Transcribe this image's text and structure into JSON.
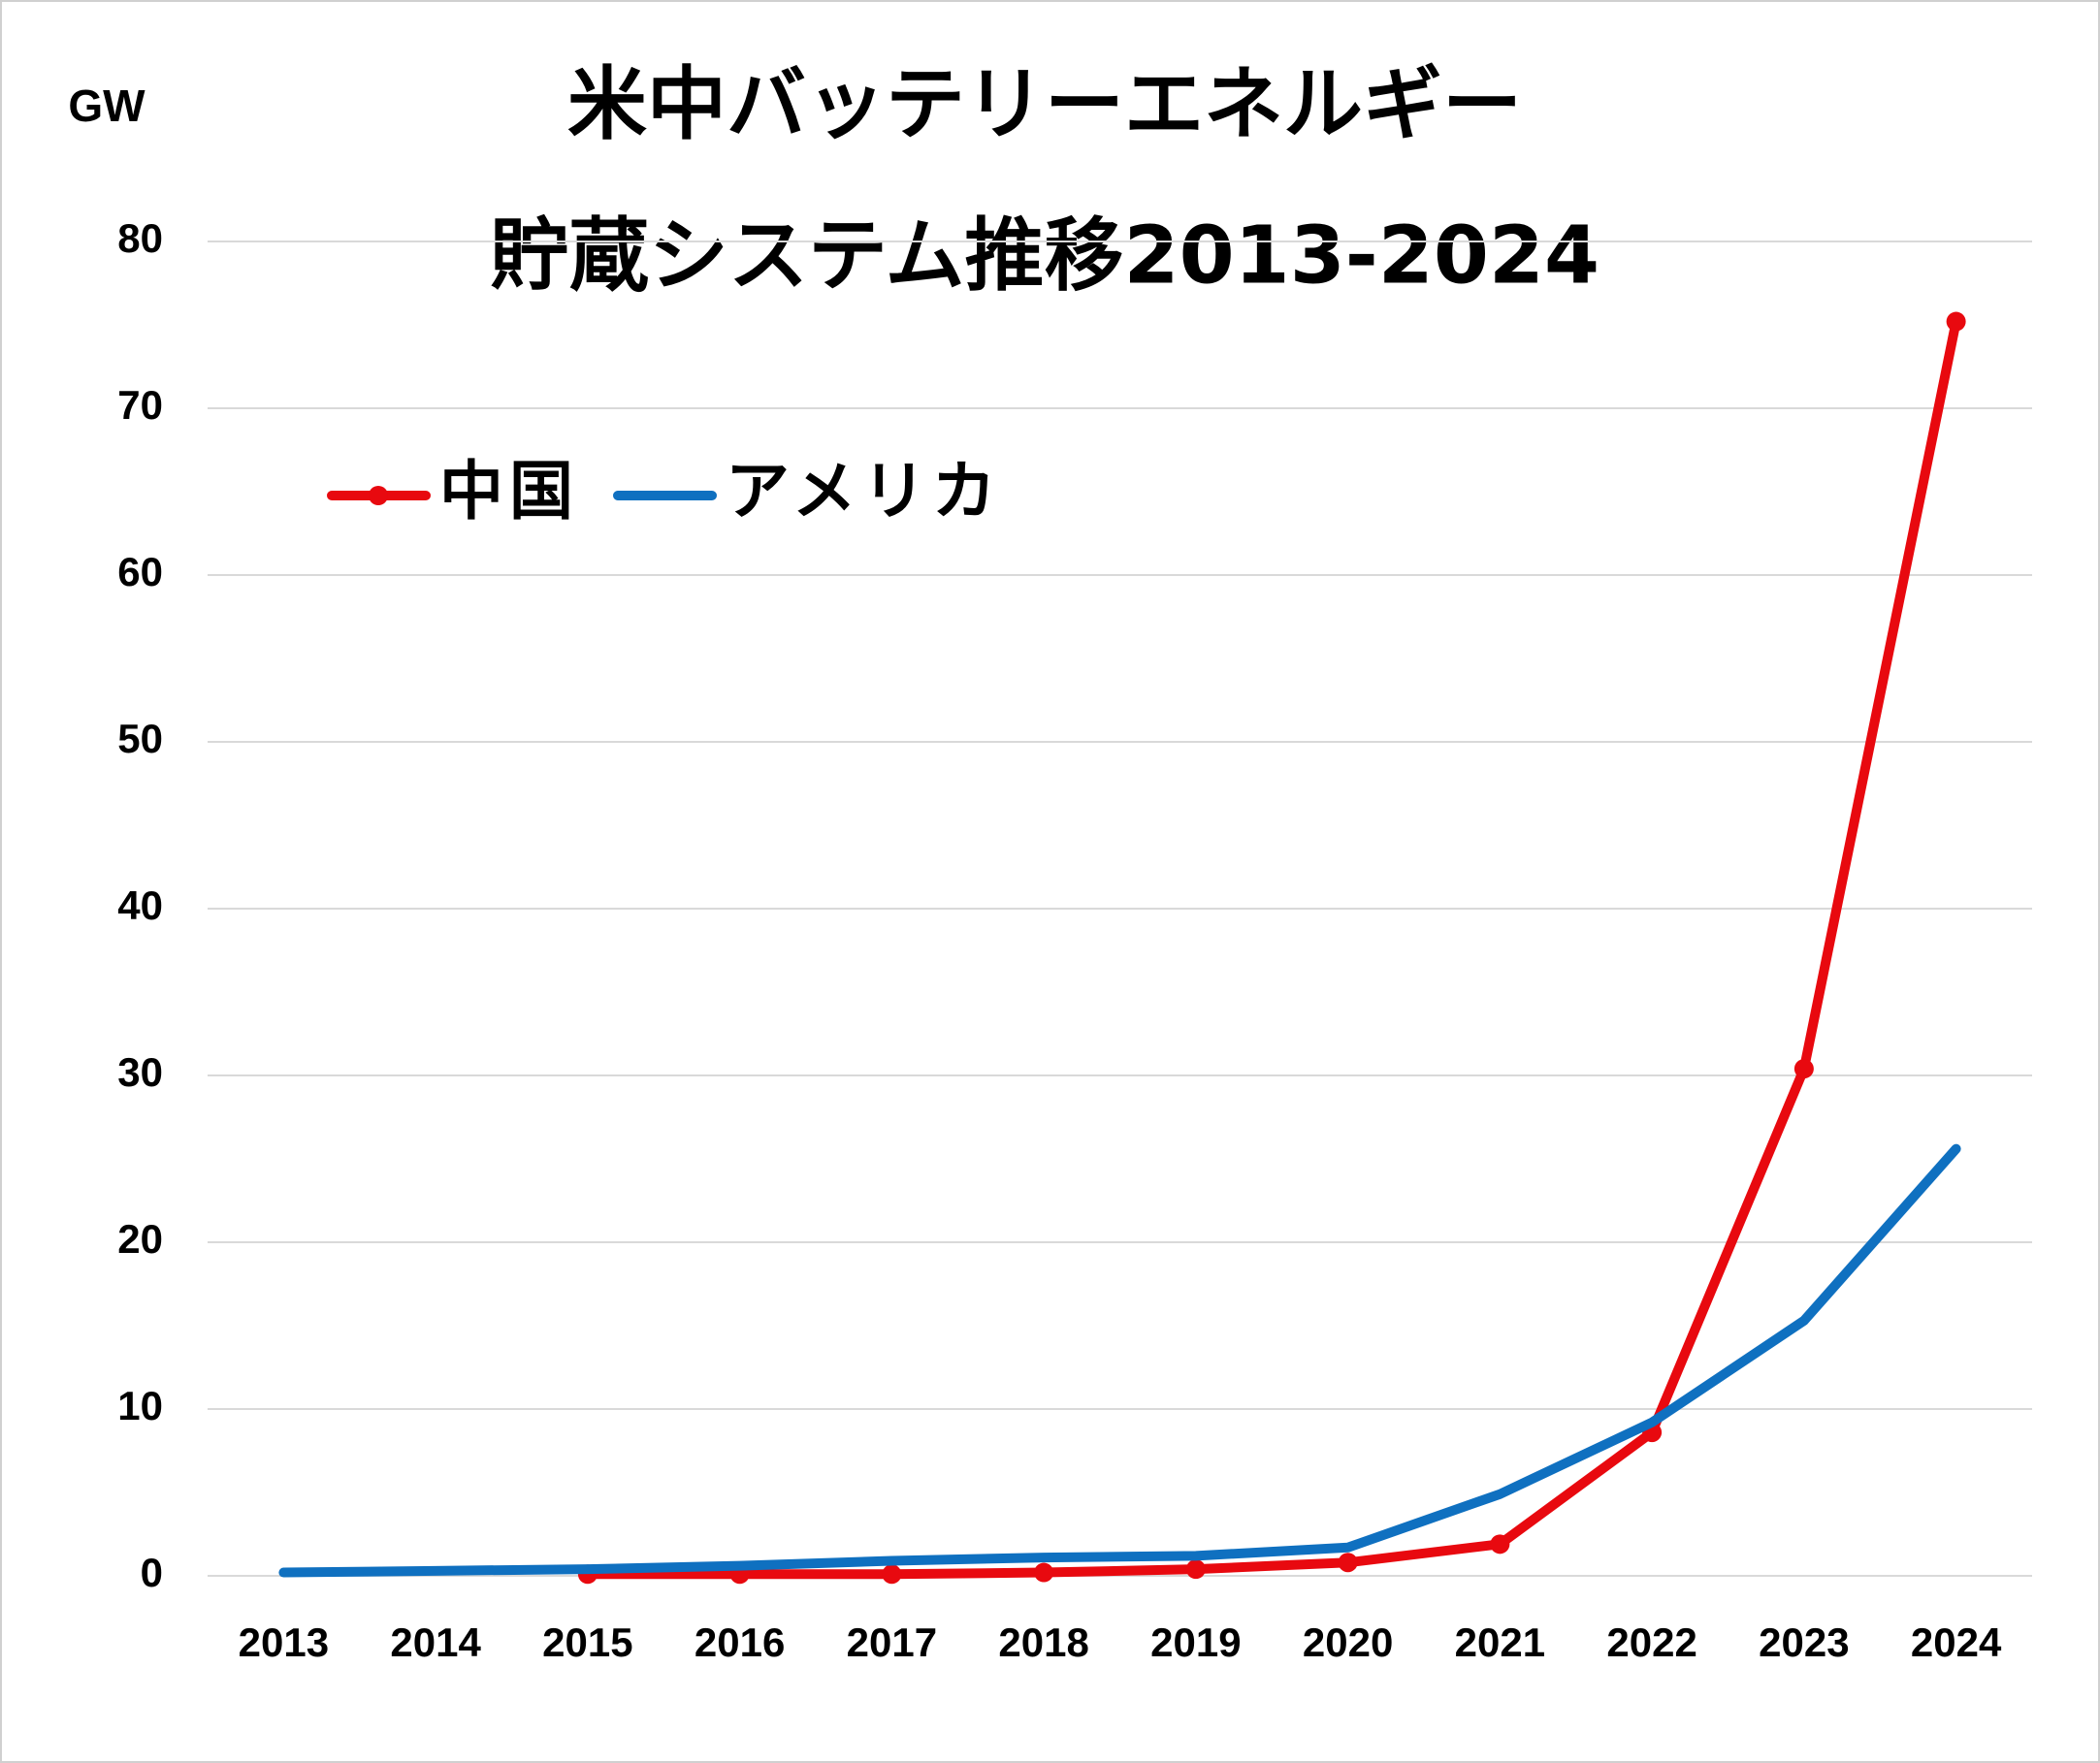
{
  "chart_data": {
    "type": "line",
    "title": [
      "米中バッテリーエネルギー",
      "貯蔵システム推移2013-2024"
    ],
    "y_label": "GW",
    "categories": [
      "2013",
      "2014",
      "2015",
      "2016",
      "2017",
      "2018",
      "2019",
      "2020",
      "2021",
      "2022",
      "2023",
      "2024"
    ],
    "series": [
      {
        "name": "中国",
        "color": "#e8090f",
        "marker": true,
        "values": [
          null,
          null,
          0.1,
          0.1,
          0.1,
          0.2,
          0.4,
          0.8,
          1.9,
          8.6,
          30.4,
          75.2
        ]
      },
      {
        "name": "アメリカ",
        "color": "#0f70c0",
        "marker": false,
        "values": [
          0.2,
          0.3,
          0.4,
          0.6,
          0.9,
          1.1,
          1.2,
          1.7,
          4.9,
          9.2,
          15.3,
          25.6
        ]
      }
    ],
    "ylim": [
      0,
      80
    ],
    "yticks": [
      0,
      10,
      20,
      30,
      40,
      50,
      60,
      70,
      80
    ],
    "grid": true,
    "legend": "upper left"
  }
}
